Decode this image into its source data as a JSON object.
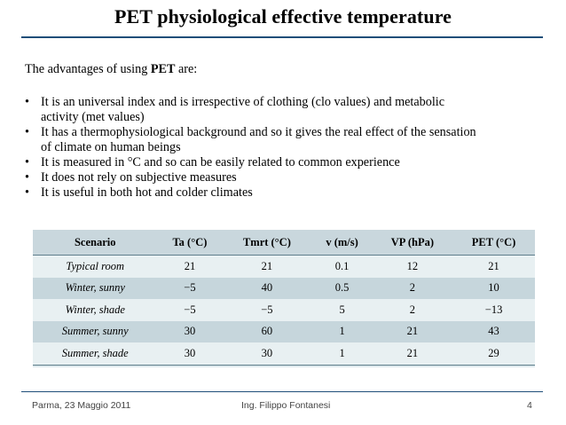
{
  "title": "PET physiological effective temperature",
  "intro": {
    "before": "The advantages of using ",
    "bold": "PET",
    "after": " are:"
  },
  "bullet_symbol": "•",
  "bullets": [
    {
      "line1": "It is an universal index and is irrespective of clothing (clo values) and metabolic",
      "line2": "activity (met values)"
    },
    {
      "line1": "It has a thermophysiological background and so it gives the real effect of the sensation",
      "line2": "of climate on human beings"
    },
    {
      "line1": "It is measured in °C and so can be easily related to common experience"
    },
    {
      "line1": "It does not rely on subjective measures"
    },
    {
      "line1": "It is useful in both hot and colder climates"
    }
  ],
  "table": {
    "headers": [
      "Scenario",
      "Ta (°C)",
      "Tmrt (°C)",
      "v (m/s)",
      "VP (hPa)",
      "PET (°C)"
    ],
    "rows": [
      [
        "Typical room",
        "21",
        "21",
        "0.1",
        "12",
        "21"
      ],
      [
        "Winter, sunny",
        "−5",
        "40",
        "0.5",
        "2",
        "10"
      ],
      [
        "Winter, shade",
        "−5",
        "−5",
        "5",
        "2",
        "−13"
      ],
      [
        "Summer, sunny",
        "30",
        "60",
        "1",
        "21",
        "43"
      ],
      [
        "Summer, shade",
        "30",
        "30",
        "1",
        "21",
        "29"
      ]
    ]
  },
  "footer": {
    "left": "Parma, 23 Maggio 2011",
    "center": "Ing. Filippo Fontanesi",
    "page": "4"
  },
  "colors": {
    "rule": "#1f4e79",
    "table_header": "#c9d7dd",
    "table_row_light": "#e8f0f2",
    "table_row_dark": "#c6d6dc"
  }
}
